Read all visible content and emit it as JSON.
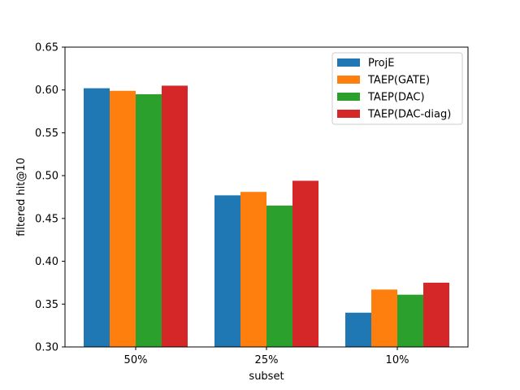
{
  "chart_data": {
    "type": "bar",
    "title": "",
    "xlabel": "subset",
    "ylabel": "filtered hit@10",
    "categories": [
      "50%",
      "25%",
      "10%"
    ],
    "ylim": [
      0.3,
      0.65
    ],
    "yticks": [
      "0.30",
      "0.35",
      "0.40",
      "0.45",
      "0.50",
      "0.55",
      "0.60",
      "0.65"
    ],
    "legend_position": "top-right",
    "grid": false,
    "series": [
      {
        "name": "ProjE",
        "color": "#1f77b4",
        "values": [
          0.602,
          0.477,
          0.34
        ]
      },
      {
        "name": "TAEP(GATE)",
        "color": "#ff7f0e",
        "values": [
          0.599,
          0.481,
          0.367
        ]
      },
      {
        "name": "TAEP(DAC)",
        "color": "#2ca02c",
        "values": [
          0.595,
          0.465,
          0.361
        ]
      },
      {
        "name": "TAEP(DAC-diag)",
        "color": "#d62728",
        "values": [
          0.605,
          0.494,
          0.375
        ]
      }
    ]
  }
}
